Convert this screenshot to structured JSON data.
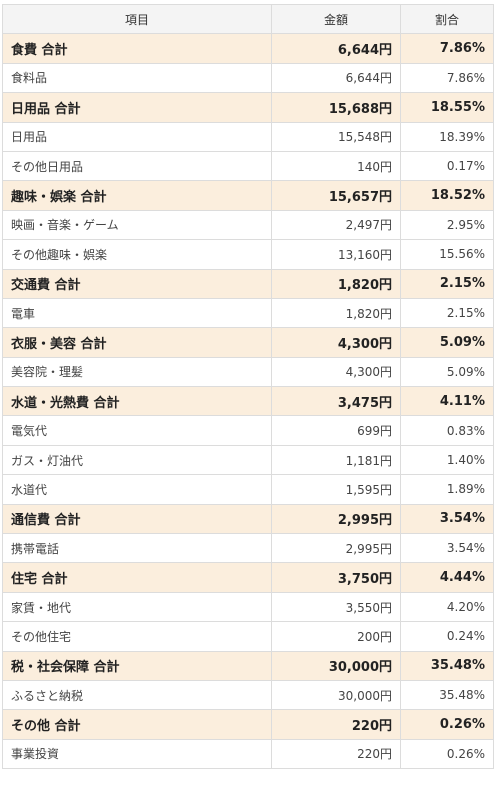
{
  "headers": {
    "item": "項目",
    "amount": "金額",
    "ratio": "割合"
  },
  "rows": [
    {
      "type": "total",
      "label": "食費 合計",
      "amount": "6,644円",
      "ratio": "7.86%"
    },
    {
      "type": "item",
      "label": "食料品",
      "amount": "6,644円",
      "ratio": "7.86%"
    },
    {
      "type": "total",
      "label": "日用品 合計",
      "amount": "15,688円",
      "ratio": "18.55%"
    },
    {
      "type": "item",
      "label": "日用品",
      "amount": "15,548円",
      "ratio": "18.39%"
    },
    {
      "type": "item",
      "label": "その他日用品",
      "amount": "140円",
      "ratio": "0.17%"
    },
    {
      "type": "total",
      "label": "趣味・娯楽 合計",
      "amount": "15,657円",
      "ratio": "18.52%"
    },
    {
      "type": "item",
      "label": "映画・音楽・ゲーム",
      "amount": "2,497円",
      "ratio": "2.95%"
    },
    {
      "type": "item",
      "label": "その他趣味・娯楽",
      "amount": "13,160円",
      "ratio": "15.56%"
    },
    {
      "type": "total",
      "label": "交通費 合計",
      "amount": "1,820円",
      "ratio": "2.15%"
    },
    {
      "type": "item",
      "label": "電車",
      "amount": "1,820円",
      "ratio": "2.15%"
    },
    {
      "type": "total",
      "label": "衣服・美容 合計",
      "amount": "4,300円",
      "ratio": "5.09%"
    },
    {
      "type": "item",
      "label": "美容院・理髪",
      "amount": "4,300円",
      "ratio": "5.09%"
    },
    {
      "type": "total",
      "label": "水道・光熱費 合計",
      "amount": "3,475円",
      "ratio": "4.11%"
    },
    {
      "type": "item",
      "label": "電気代",
      "amount": "699円",
      "ratio": "0.83%"
    },
    {
      "type": "item",
      "label": "ガス・灯油代",
      "amount": "1,181円",
      "ratio": "1.40%"
    },
    {
      "type": "item",
      "label": "水道代",
      "amount": "1,595円",
      "ratio": "1.89%"
    },
    {
      "type": "total",
      "label": "通信費 合計",
      "amount": "2,995円",
      "ratio": "3.54%"
    },
    {
      "type": "item",
      "label": "携帯電話",
      "amount": "2,995円",
      "ratio": "3.54%"
    },
    {
      "type": "total",
      "label": "住宅 合計",
      "amount": "3,750円",
      "ratio": "4.44%"
    },
    {
      "type": "item",
      "label": "家賃・地代",
      "amount": "3,550円",
      "ratio": "4.20%"
    },
    {
      "type": "item",
      "label": "その他住宅",
      "amount": "200円",
      "ratio": "0.24%"
    },
    {
      "type": "total",
      "label": "税・社会保障 合計",
      "amount": "30,000円",
      "ratio": "35.48%"
    },
    {
      "type": "item",
      "label": "ふるさと納税",
      "amount": "30,000円",
      "ratio": "35.48%"
    },
    {
      "type": "total",
      "label": "その他 合計",
      "amount": "220円",
      "ratio": "0.26%"
    },
    {
      "type": "item",
      "label": "事業投資",
      "amount": "220円",
      "ratio": "0.26%"
    }
  ]
}
